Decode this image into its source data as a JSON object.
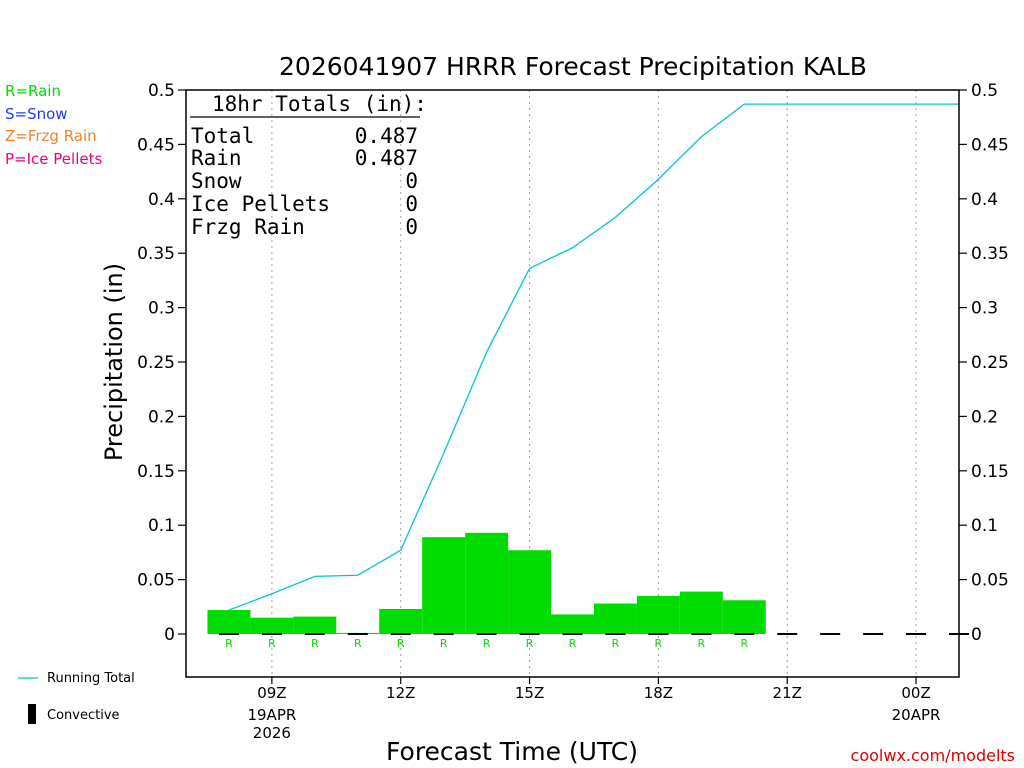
{
  "chart_data": {
    "type": "bar",
    "title": "2026041907 HRRR Forecast Precipitation KALB",
    "xlabel": "Forecast Time (UTC)",
    "ylabel": "Precipitation (in)",
    "ylim": [
      -0.04,
      0.5
    ],
    "yticks": [
      "0.5",
      "0.45",
      "0.4",
      "0.35",
      "0.3",
      "0.25",
      "0.2",
      "0.15",
      "0.1",
      "0.05",
      "0"
    ],
    "ytick_values": [
      0.5,
      0.45,
      0.4,
      0.35,
      0.3,
      0.25,
      0.2,
      0.15,
      0.1,
      0.05,
      0
    ],
    "xlim": [
      7,
      25
    ],
    "x_ticks": [
      {
        "hour": 9,
        "label": "09Z",
        "sub1": "19APR",
        "sub2": "2026"
      },
      {
        "hour": 12,
        "label": "12Z",
        "sub1": "",
        "sub2": ""
      },
      {
        "hour": 15,
        "label": "15Z",
        "sub1": "",
        "sub2": ""
      },
      {
        "hour": 18,
        "label": "18Z",
        "sub1": "",
        "sub2": ""
      },
      {
        "hour": 21,
        "label": "21Z",
        "sub1": "",
        "sub2": ""
      },
      {
        "hour": 24,
        "label": "00Z",
        "sub1": "20APR",
        "sub2": ""
      }
    ],
    "hours": [
      8,
      9,
      10,
      11,
      12,
      13,
      14,
      15,
      16,
      17,
      18,
      19,
      20,
      21,
      22,
      23,
      24,
      25
    ],
    "hourly_precip": [
      0.022,
      0.015,
      0.016,
      0.001,
      0.023,
      0.089,
      0.093,
      0.077,
      0.018,
      0.028,
      0.035,
      0.039,
      0.031,
      0,
      0,
      0,
      0,
      0
    ],
    "precip_type": [
      "R",
      "R",
      "R",
      "R",
      "R",
      "R",
      "R",
      "R",
      "R",
      "R",
      "R",
      "R",
      "R",
      "",
      "",
      "",
      "",
      ""
    ],
    "running_total": [
      0.022,
      0.037,
      0.053,
      0.054,
      0.077,
      0.166,
      0.259,
      0.336,
      0.355,
      0.383,
      0.418,
      0.457,
      0.487,
      0.487,
      0.487,
      0.487,
      0.487,
      0.487
    ],
    "totals": {
      "heading": "18hr Totals (in):",
      "rows": [
        {
          "label": "Total",
          "value": "0.487"
        },
        {
          "label": "Rain",
          "value": "0.487"
        },
        {
          "label": "Snow",
          "value": "0"
        },
        {
          "label": "Ice Pellets",
          "value": "0"
        },
        {
          "label": "Frzg Rain",
          "value": "0"
        }
      ]
    },
    "type_legend": [
      {
        "text": "R=Rain",
        "color": "#00dc00"
      },
      {
        "text": "S=Snow",
        "color": "#1e3cff"
      },
      {
        "text": "Z=Frzg Rain",
        "color": "#f08228"
      },
      {
        "text": "P=Ice Pellets",
        "color": "#f00082"
      }
    ],
    "series_legend": {
      "running_total": "Running Total",
      "convective": "Convective"
    },
    "credit": "coolwx.com/modelts",
    "colors": {
      "bar": "#00dc00",
      "line": "#00c8c8",
      "credit": "#dc0000",
      "axis": "#000000",
      "grid": "#a0a0a0"
    }
  }
}
